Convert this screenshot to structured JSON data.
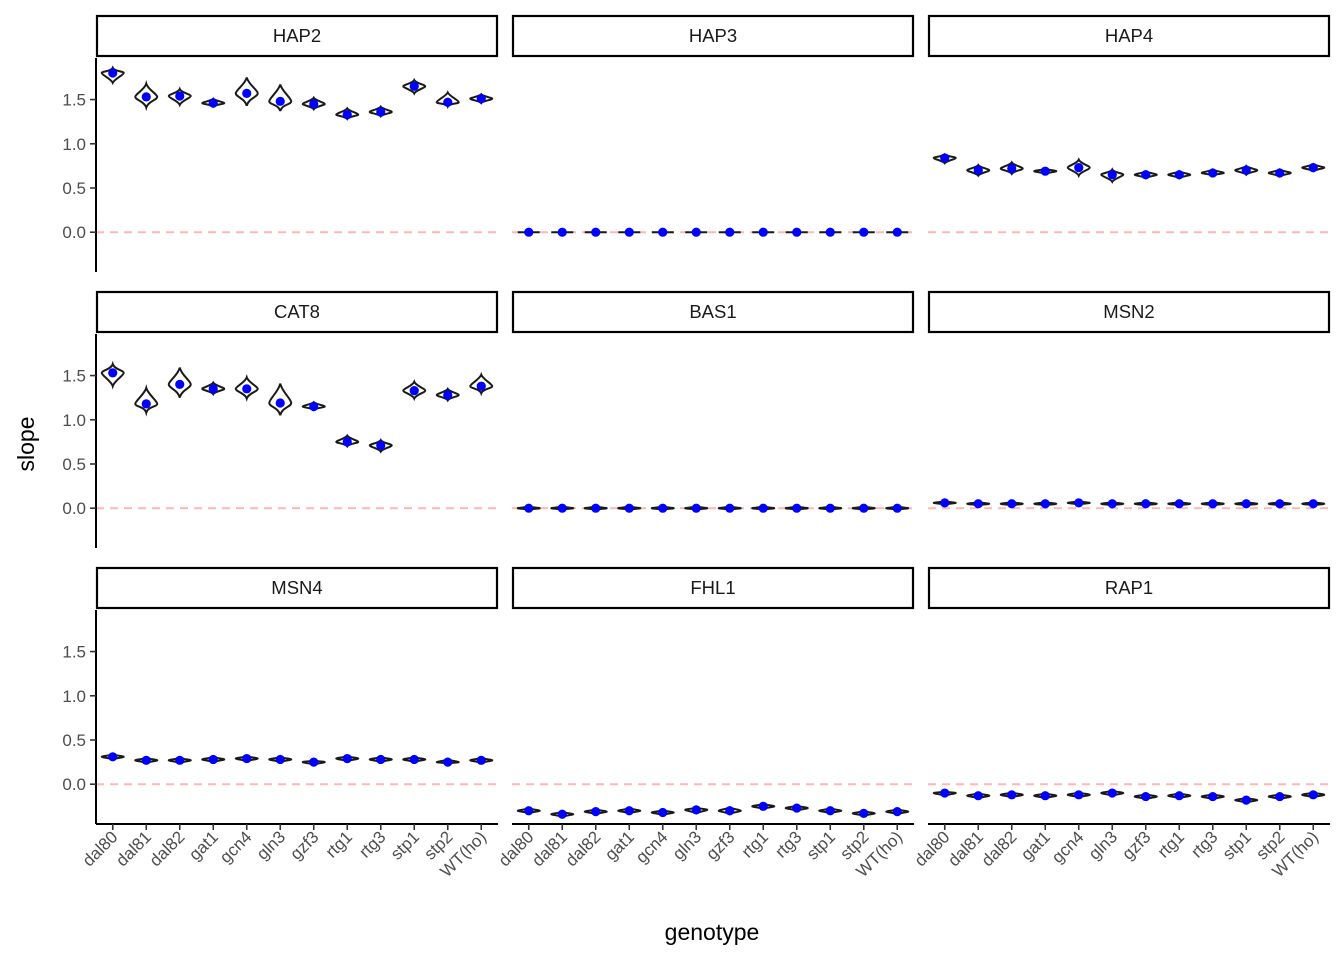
{
  "chart_data": {
    "type": "violin",
    "facet_layout": "3x3",
    "xlabel": "genotype",
    "ylabel": "slope",
    "ylim": [
      -0.45,
      1.97
    ],
    "y_ticks": [
      0.0,
      0.5,
      1.0,
      1.5
    ],
    "y_tick_labels": [
      "0.0",
      "0.5",
      "1.0",
      "1.5"
    ],
    "categories": [
      "dal80",
      "dal81",
      "dal82",
      "gat1",
      "gcn4",
      "gln3",
      "gzf3",
      "rtg1",
      "rtg3",
      "stp1",
      "stp2",
      "WT(ho)"
    ],
    "reference_line": {
      "y": 0,
      "style": "dashed",
      "color": "#ffb6b6"
    },
    "mean_point_color": "#0000ff",
    "violin_outline_color": "#1a1a1a",
    "grid": false,
    "facets": [
      {
        "name": "HAP2",
        "means": [
          1.8,
          1.53,
          1.54,
          1.46,
          1.57,
          1.48,
          1.45,
          1.33,
          1.36,
          1.65,
          1.47,
          1.51
        ],
        "mins": [
          1.69,
          1.41,
          1.44,
          1.42,
          1.43,
          1.37,
          1.39,
          1.28,
          1.31,
          1.57,
          1.42,
          1.46
        ],
        "maxs": [
          1.86,
          1.68,
          1.62,
          1.51,
          1.75,
          1.67,
          1.52,
          1.4,
          1.42,
          1.72,
          1.58,
          1.56
        ]
      },
      {
        "name": "HAP3",
        "means": [
          0.0,
          0.0,
          0.0,
          0.0,
          0.0,
          0.0,
          0.0,
          0.0,
          0.0,
          0.0,
          0.0,
          0.0
        ],
        "mins": [
          0.0,
          0.0,
          0.0,
          0.0,
          0.0,
          -0.01,
          0.0,
          0.0,
          0.0,
          0.0,
          0.0,
          0.0
        ],
        "maxs": [
          0.0,
          0.0,
          0.0,
          0.0,
          0.0,
          0.01,
          0.0,
          0.0,
          0.0,
          0.0,
          0.0,
          0.0
        ]
      },
      {
        "name": "HAP4",
        "means": [
          0.84,
          0.7,
          0.72,
          0.69,
          0.73,
          0.65,
          0.65,
          0.65,
          0.67,
          0.7,
          0.67,
          0.73
        ],
        "mins": [
          0.78,
          0.64,
          0.66,
          0.66,
          0.64,
          0.57,
          0.61,
          0.61,
          0.64,
          0.65,
          0.63,
          0.69
        ],
        "maxs": [
          0.88,
          0.76,
          0.79,
          0.72,
          0.82,
          0.71,
          0.69,
          0.69,
          0.71,
          0.75,
          0.71,
          0.77
        ]
      },
      {
        "name": "CAT8",
        "means": [
          1.53,
          1.18,
          1.4,
          1.35,
          1.35,
          1.19,
          1.15,
          0.75,
          0.71,
          1.33,
          1.28,
          1.38
        ],
        "mins": [
          1.38,
          1.08,
          1.25,
          1.29,
          1.24,
          1.05,
          1.11,
          0.7,
          0.64,
          1.24,
          1.22,
          1.3
        ],
        "maxs": [
          1.63,
          1.36,
          1.59,
          1.42,
          1.48,
          1.41,
          1.2,
          0.82,
          0.77,
          1.43,
          1.35,
          1.51
        ]
      },
      {
        "name": "BAS1",
        "means": [
          0.0,
          0.0,
          0.0,
          0.0,
          0.0,
          0.0,
          0.0,
          0.0,
          0.0,
          0.0,
          0.0,
          0.0
        ],
        "mins": [
          -0.02,
          -0.02,
          -0.02,
          -0.02,
          -0.02,
          -0.02,
          -0.02,
          -0.02,
          -0.02,
          -0.02,
          -0.02,
          -0.02
        ],
        "maxs": [
          0.02,
          0.02,
          0.02,
          0.02,
          0.02,
          0.02,
          0.02,
          0.02,
          0.02,
          0.02,
          0.02,
          0.02
        ]
      },
      {
        "name": "MSN2",
        "means": [
          0.06,
          0.05,
          0.05,
          0.05,
          0.06,
          0.05,
          0.05,
          0.05,
          0.05,
          0.05,
          0.05,
          0.05
        ],
        "mins": [
          0.04,
          0.03,
          0.03,
          0.03,
          0.04,
          0.03,
          0.03,
          0.03,
          0.03,
          0.03,
          0.03,
          0.03
        ],
        "maxs": [
          0.08,
          0.07,
          0.07,
          0.07,
          0.08,
          0.07,
          0.07,
          0.07,
          0.07,
          0.07,
          0.07,
          0.07
        ]
      },
      {
        "name": "MSN4",
        "means": [
          0.31,
          0.27,
          0.27,
          0.28,
          0.29,
          0.28,
          0.25,
          0.29,
          0.28,
          0.28,
          0.25,
          0.27
        ],
        "mins": [
          0.28,
          0.24,
          0.24,
          0.25,
          0.26,
          0.25,
          0.22,
          0.26,
          0.25,
          0.25,
          0.23,
          0.24
        ],
        "maxs": [
          0.34,
          0.3,
          0.3,
          0.31,
          0.32,
          0.31,
          0.27,
          0.32,
          0.31,
          0.31,
          0.28,
          0.3
        ]
      },
      {
        "name": "FHL1",
        "means": [
          -0.3,
          -0.34,
          -0.31,
          -0.3,
          -0.32,
          -0.29,
          -0.3,
          -0.25,
          -0.27,
          -0.3,
          -0.33,
          -0.31
        ],
        "mins": [
          -0.33,
          -0.37,
          -0.34,
          -0.33,
          -0.35,
          -0.33,
          -0.34,
          -0.28,
          -0.3,
          -0.33,
          -0.36,
          -0.34
        ],
        "maxs": [
          -0.27,
          -0.31,
          -0.28,
          -0.27,
          -0.29,
          -0.26,
          -0.26,
          -0.22,
          -0.24,
          -0.27,
          -0.3,
          -0.28
        ]
      },
      {
        "name": "RAP1",
        "means": [
          -0.1,
          -0.13,
          -0.12,
          -0.13,
          -0.12,
          -0.1,
          -0.14,
          -0.13,
          -0.14,
          -0.18,
          -0.14,
          -0.12
        ],
        "mins": [
          -0.13,
          -0.16,
          -0.15,
          -0.16,
          -0.15,
          -0.13,
          -0.17,
          -0.16,
          -0.17,
          -0.21,
          -0.17,
          -0.15
        ],
        "maxs": [
          -0.08,
          -0.1,
          -0.09,
          -0.1,
          -0.09,
          -0.07,
          -0.11,
          -0.1,
          -0.11,
          -0.15,
          -0.11,
          -0.09
        ]
      }
    ]
  }
}
